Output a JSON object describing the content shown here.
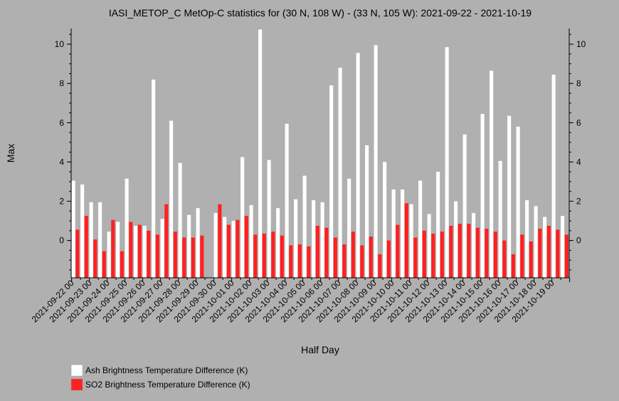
{
  "chart_data": {
    "type": "bar",
    "title": "IASI_METOP_C MetOp-C statistics for (30 N, 108 W) - (33 N, 105 W): 2021-09-22 - 2021-10-19",
    "xlabel": "Half Day",
    "ylabel": "Max",
    "ylim": [
      -1.9,
      10.8
    ],
    "yticks": [
      0,
      2,
      4,
      6,
      8,
      10
    ],
    "grid": false,
    "legend_position": "bottom-left",
    "x_tick_labels": [
      "2021-09-22 00",
      "2021-09-23 00",
      "2021-09-24 00",
      "2021-09-25 00",
      "2021-09-26 00",
      "2021-09-27 00",
      "2021-09-28 00",
      "2021-09-29 00",
      "2021-09-30 00",
      "2021-10-01 00",
      "2021-10-02 00",
      "2021-10-03 00",
      "2021-10-04 00",
      "2021-10-05 00",
      "2021-10-06 00",
      "2021-10-07 00",
      "2021-10-08 00",
      "2021-10-09 00",
      "2021-10-10 00",
      "2021-10-11 00",
      "2021-10-12 00",
      "2021-10-13 00",
      "2021-10-14 00",
      "2021-10-15 00",
      "2021-10-16 00",
      "2021-10-17 00",
      "2021-10-18 00",
      "2021-10-19 00"
    ],
    "series": [
      {
        "name": "Ash Brightness Temperature Difference (K)",
        "color": "#ffffff",
        "values": [
          3.05,
          2.85,
          1.95,
          1.95,
          0.45,
          0.95,
          3.15,
          0.75,
          0.75,
          8.2,
          1.1,
          6.1,
          3.95,
          1.3,
          1.65,
          null,
          1.4,
          1.2,
          1.0,
          4.25,
          1.8,
          10.75,
          4.1,
          1.65,
          5.95,
          2.1,
          3.3,
          2.05,
          1.95,
          7.9,
          8.8,
          3.15,
          9.55,
          4.85,
          9.95,
          4.0,
          2.6,
          2.6,
          1.85,
          3.05,
          1.35,
          3.5,
          9.85,
          2.0,
          5.4,
          1.4,
          6.45,
          8.65,
          4.05,
          6.35,
          5.8,
          2.05,
          1.75,
          1.2,
          8.45,
          1.25
        ]
      },
      {
        "name": "SO2 Brightness Temperature Difference (K)",
        "color": "#ff2020",
        "values": [
          0.55,
          1.25,
          0.05,
          -0.55,
          1.05,
          -0.55,
          0.95,
          0.8,
          0.5,
          0.3,
          1.85,
          0.45,
          0.15,
          0.15,
          0.25,
          null,
          1.85,
          0.8,
          1.05,
          1.25,
          0.3,
          0.35,
          0.45,
          0.25,
          -0.25,
          -0.2,
          -0.3,
          0.75,
          0.65,
          0.15,
          -0.2,
          0.45,
          -0.25,
          0.2,
          -0.7,
          0.0,
          0.8,
          1.9,
          0.15,
          0.5,
          0.35,
          0.45,
          0.75,
          0.85,
          0.85,
          0.65,
          0.6,
          0.45,
          0.0,
          -0.7,
          0.3,
          -0.05,
          0.6,
          0.75,
          0.55,
          0.3
        ]
      }
    ]
  }
}
